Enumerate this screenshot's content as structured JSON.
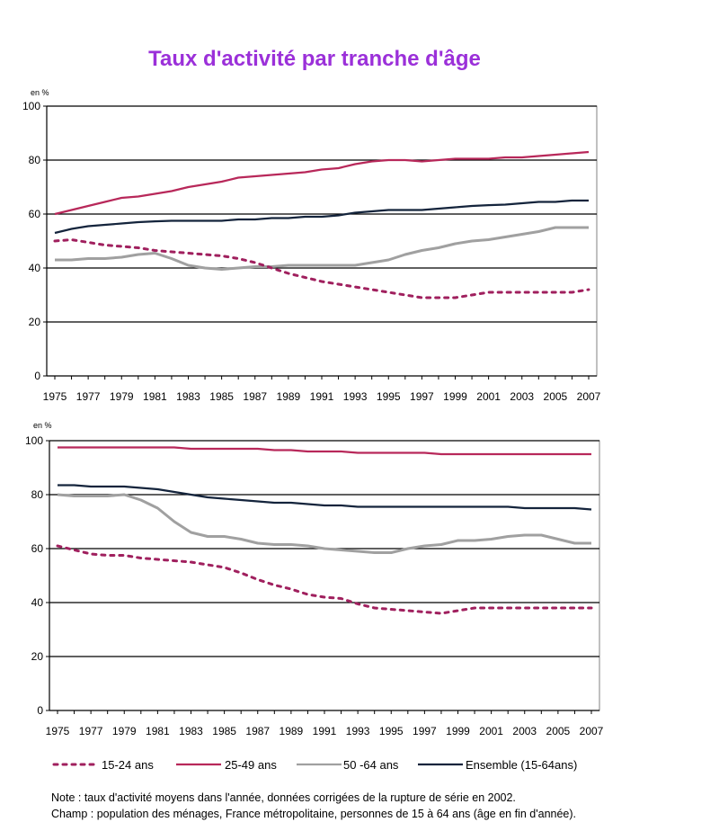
{
  "title": "Taux d'activité par tranche d'âge",
  "colors": {
    "s15_24": "#a0205e",
    "s25_49": "#b8285a",
    "s50_64": "#a0a0a0",
    "ensemble": "#14243c",
    "title": "#9b30d9"
  },
  "legend": [
    {
      "key": "s15_24",
      "label": "15-24 ans"
    },
    {
      "key": "s25_49",
      "label": "25-49 ans"
    },
    {
      "key": "s50_64",
      "label": "50 -64 ans"
    },
    {
      "key": "ensemble",
      "label": "Ensemble (15-64ans)"
    }
  ],
  "notes": {
    "note": "Note : taux d'activité moyens dans l'année, données corrigées de la rupture de série en 2002.",
    "champ": "Champ : population des ménages, France métropolitaine, personnes de 15 à 64 ans (âge en fin d'année)."
  },
  "chart_data": [
    {
      "type": "line",
      "unit_label": "en %",
      "ylim": [
        0,
        100
      ],
      "yticks": [
        0,
        20,
        40,
        60,
        80,
        100
      ],
      "x": [
        1975,
        1976,
        1977,
        1978,
        1979,
        1980,
        1981,
        1982,
        1983,
        1984,
        1985,
        1986,
        1987,
        1988,
        1989,
        1990,
        1991,
        1992,
        1993,
        1994,
        1995,
        1996,
        1997,
        1998,
        1999,
        2000,
        2001,
        2002,
        2003,
        2004,
        2005,
        2006,
        2007
      ],
      "xtick_labels": [
        "1975",
        "1977",
        "1979",
        "1981",
        "1983",
        "1985",
        "1987",
        "1989",
        "1991",
        "1993",
        "1995",
        "1997",
        "1999",
        "2001",
        "2003",
        "2005",
        "2007"
      ],
      "grid": "horizontal",
      "series": [
        {
          "key": "s25_49",
          "name": "25-49 ans",
          "style": "solid",
          "values": [
            60,
            61.5,
            63,
            64.5,
            66,
            66.5,
            67.5,
            68.5,
            70,
            71,
            72,
            73.5,
            74,
            74.5,
            75,
            75.5,
            76.5,
            77,
            78.5,
            79.5,
            80,
            80,
            79.5,
            80,
            80.5,
            80.5,
            80.5,
            81,
            81,
            81.5,
            82,
            82.5,
            83
          ]
        },
        {
          "key": "ensemble",
          "name": "Ensemble (15-64ans)",
          "style": "solid",
          "values": [
            53,
            54.5,
            55.5,
            56,
            56.5,
            57,
            57.3,
            57.5,
            57.5,
            57.5,
            57.5,
            58,
            58,
            58.5,
            58.5,
            59,
            59,
            59.5,
            60.5,
            61,
            61.5,
            61.5,
            61.5,
            62,
            62.5,
            63,
            63.3,
            63.5,
            64,
            64.5,
            64.5,
            65,
            65
          ]
        },
        {
          "key": "s50_64",
          "name": "50 -64 ans",
          "style": "solid",
          "values": [
            43,
            43,
            43.5,
            43.5,
            44,
            45,
            45.5,
            43.5,
            41,
            40,
            39.5,
            40,
            40.5,
            40.5,
            41,
            41,
            41,
            41,
            41,
            42,
            43,
            45,
            46.5,
            47.5,
            49,
            50,
            50.5,
            51.5,
            52.5,
            53.5,
            55,
            55,
            55
          ]
        },
        {
          "key": "s15_24",
          "name": "15-24 ans",
          "style": "dashed",
          "values": [
            50,
            50.5,
            49.5,
            48.5,
            48,
            47.5,
            46.5,
            46,
            45.5,
            45,
            44.5,
            43.5,
            42,
            40,
            38,
            36.5,
            35,
            34,
            33,
            32,
            31,
            30,
            29,
            29,
            29,
            30,
            31,
            31,
            31,
            31,
            31,
            31,
            32
          ]
        }
      ]
    },
    {
      "type": "line",
      "unit_label": "en %",
      "ylim": [
        0,
        100
      ],
      "yticks": [
        0,
        20,
        40,
        60,
        80,
        100
      ],
      "x": [
        1975,
        1976,
        1977,
        1978,
        1979,
        1980,
        1981,
        1982,
        1983,
        1984,
        1985,
        1986,
        1987,
        1988,
        1989,
        1990,
        1991,
        1992,
        1993,
        1994,
        1995,
        1996,
        1997,
        1998,
        1999,
        2000,
        2001,
        2002,
        2003,
        2004,
        2005,
        2006,
        2007
      ],
      "xtick_labels": [
        "1975",
        "1977",
        "1979",
        "1981",
        "1983",
        "1985",
        "1987",
        "1989",
        "1991",
        "1993",
        "1995",
        "1997",
        "1999",
        "2001",
        "2003",
        "2005",
        "2007"
      ],
      "grid": "horizontal",
      "series": [
        {
          "key": "s25_49",
          "name": "25-49 ans",
          "style": "solid",
          "values": [
            97.5,
            97.5,
            97.5,
            97.5,
            97.5,
            97.5,
            97.5,
            97.5,
            97,
            97,
            97,
            97,
            97,
            96.5,
            96.5,
            96,
            96,
            96,
            95.5,
            95.5,
            95.5,
            95.5,
            95.5,
            95,
            95,
            95,
            95,
            95,
            95,
            95,
            95,
            95,
            95
          ]
        },
        {
          "key": "ensemble",
          "name": "Ensemble (15-64ans)",
          "style": "solid",
          "values": [
            83.5,
            83.5,
            83,
            83,
            83,
            82.5,
            82,
            81,
            80,
            79,
            78.5,
            78,
            77.5,
            77,
            77,
            76.5,
            76,
            76,
            75.5,
            75.5,
            75.5,
            75.5,
            75.5,
            75.5,
            75.5,
            75.5,
            75.5,
            75.5,
            75,
            75,
            75,
            75,
            74.5
          ]
        },
        {
          "key": "s50_64",
          "name": "50 -64 ans",
          "style": "solid",
          "values": [
            80,
            79.5,
            79.5,
            79.5,
            80,
            78,
            75,
            70,
            66,
            64.5,
            64.5,
            63.5,
            62,
            61.5,
            61.5,
            61,
            60,
            59.5,
            59,
            58.5,
            58.5,
            60,
            61,
            61.5,
            63,
            63,
            63.5,
            64.5,
            65,
            65,
            63.5,
            62,
            62
          ]
        },
        {
          "key": "s15_24",
          "name": "15-24 ans",
          "style": "dashed",
          "values": [
            61,
            59.5,
            58,
            57.5,
            57.5,
            56.5,
            56,
            55.5,
            55,
            54,
            53,
            51,
            48.5,
            46.5,
            45,
            43,
            42,
            41.5,
            39.5,
            38,
            37.5,
            37,
            36.5,
            36,
            37,
            38,
            38,
            38,
            38,
            38,
            38,
            38,
            38
          ]
        }
      ]
    }
  ]
}
